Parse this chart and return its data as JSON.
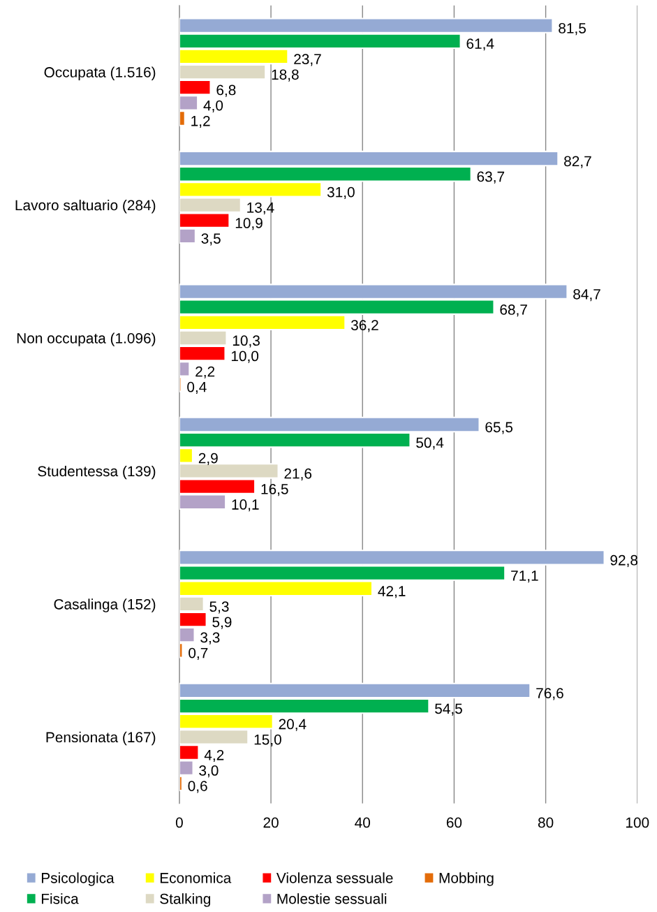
{
  "chart_data": {
    "type": "bar",
    "orientation": "horizontal",
    "categories": [
      "Occupata (1.516)",
      "Lavoro saltuario (284)",
      "Non occupata (1.096)",
      "Studentessa (139)",
      "Casalinga (152)",
      "Pensionata (167)"
    ],
    "series": [
      {
        "name": "Psicologica",
        "color": "#95aad4",
        "values": [
          81.5,
          82.7,
          84.7,
          65.5,
          92.8,
          76.6
        ],
        "value_labels": [
          "81,5",
          "82,7",
          "84,7",
          "65,5",
          "92,8",
          "76,6"
        ]
      },
      {
        "name": "Fisica",
        "color": "#00b050",
        "values": [
          61.4,
          63.7,
          68.7,
          50.4,
          71.1,
          54.5
        ],
        "value_labels": [
          "61,4",
          "63,7",
          "68,7",
          "50,4",
          "71,1",
          "54,5"
        ]
      },
      {
        "name": "Economica",
        "color": "#ffff00",
        "values": [
          23.7,
          31.0,
          36.2,
          2.9,
          42.1,
          20.4
        ],
        "value_labels": [
          "23,7",
          "31,0",
          "36,2",
          "2,9",
          "42,1",
          "20,4"
        ]
      },
      {
        "name": "Stalking",
        "color": "#ddd9c3",
        "values": [
          18.8,
          13.4,
          10.3,
          21.6,
          5.3,
          15.0
        ],
        "value_labels": [
          "18,8",
          "13,4",
          "10,3",
          "21,6",
          "5,3",
          "15,0"
        ]
      },
      {
        "name": "Violenza sessuale",
        "color": "#ff0000",
        "values": [
          6.8,
          10.9,
          10.0,
          16.5,
          5.9,
          4.2
        ],
        "value_labels": [
          "6,8",
          "10,9",
          "10,0",
          "16,5",
          "5,9",
          "4,2"
        ]
      },
      {
        "name": "Molestie sessuali",
        "color": "#b3a2c7",
        "values": [
          4.0,
          3.5,
          2.2,
          10.1,
          3.3,
          3.0
        ],
        "value_labels": [
          "4,0",
          "3,5",
          "2,2",
          "10,1",
          "3,3",
          "3,0"
        ]
      },
      {
        "name": "Mobbing",
        "color": "#e36c09",
        "values": [
          1.2,
          null,
          0.4,
          null,
          0.7,
          0.6
        ],
        "value_labels": [
          "1,2",
          null,
          "0,4",
          null,
          "0,7",
          "0,6"
        ]
      }
    ],
    "xlim": [
      0,
      100
    ],
    "xticks": [
      0,
      20,
      40,
      60,
      80,
      100
    ],
    "grid": "x",
    "legend": "bottom"
  }
}
